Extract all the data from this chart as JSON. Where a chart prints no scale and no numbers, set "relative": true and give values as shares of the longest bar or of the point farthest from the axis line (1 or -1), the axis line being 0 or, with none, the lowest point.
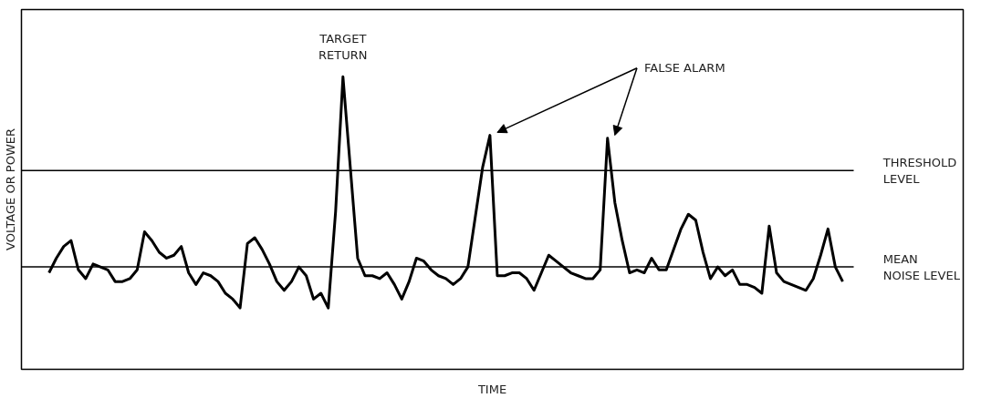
{
  "chart_data": {
    "type": "line",
    "relative": true,
    "xlabel": "TIME",
    "ylabel": "VOLTAGE OR POWER",
    "categories": [
      null,
      null,
      null,
      null,
      null,
      null,
      null,
      null,
      null,
      null,
      null,
      null,
      null,
      null,
      null,
      null,
      null,
      null,
      null,
      null,
      null,
      null,
      null,
      null,
      null,
      null,
      null,
      null,
      null,
      null,
      null,
      null,
      null,
      null,
      null,
      null,
      null,
      null,
      null,
      null,
      null,
      null,
      null,
      null,
      null,
      null,
      null,
      null,
      null,
      null,
      null,
      null,
      null,
      null,
      null,
      null,
      null,
      null,
      null,
      null,
      null,
      null,
      null,
      null,
      null,
      null,
      null,
      null,
      null,
      null,
      null,
      null,
      null,
      null,
      null,
      null,
      null,
      null,
      null,
      null,
      null,
      null,
      null,
      null,
      null,
      null,
      null,
      null,
      null,
      null,
      null,
      null,
      null,
      null,
      null,
      null,
      null,
      null,
      null,
      null,
      null,
      null,
      null,
      null,
      null,
      null,
      null,
      null,
      null
    ],
    "series": [
      {
        "color": "#000000",
        "values": [
          0.33,
          0.38,
          0.42,
          0.44,
          0.34,
          0.31,
          0.36,
          0.35,
          0.34,
          0.3,
          0.3,
          0.31,
          0.34,
          0.47,
          0.44,
          0.4,
          0.38,
          0.39,
          0.42,
          0.33,
          0.29,
          0.33,
          0.32,
          0.3,
          0.26,
          0.24,
          0.21,
          0.43,
          0.45,
          0.41,
          0.36,
          0.3,
          0.27,
          0.3,
          0.35,
          0.32,
          0.24,
          0.26,
          0.21,
          0.54,
          1,
          0.69,
          0.38,
          0.32,
          0.32,
          0.31,
          0.33,
          0.29,
          0.24,
          0.3,
          0.38,
          0.37,
          0.34,
          0.32,
          0.31,
          0.29,
          0.31,
          0.35,
          0.52,
          0.69,
          0.8,
          0.32,
          0.32,
          0.33,
          0.33,
          0.31,
          0.27,
          0.33,
          0.39,
          0.37,
          0.35,
          0.33,
          0.32,
          0.31,
          0.31,
          0.34,
          0.79,
          0.57,
          0.44,
          0.33,
          0.34,
          0.33,
          0.38,
          0.34,
          0.34,
          0.41,
          0.48,
          0.53,
          0.51,
          0.4,
          0.31,
          0.35,
          0.32,
          0.34,
          0.29,
          0.29,
          0.28,
          0.26,
          0.49,
          0.33,
          0.3,
          0.29,
          0.28,
          0.27,
          0.31,
          0.39,
          0.48,
          0.35,
          0.3
        ]
      }
    ],
    "ref_lines": [
      {
        "axis": "y",
        "value": 0.68,
        "label": "THRESHOLD\nLEVEL",
        "color": "#000000"
      },
      {
        "axis": "y",
        "value": 0.35,
        "label": "MEAN\nNOISE LEVEL",
        "color": "#000000"
      }
    ],
    "annotations": [
      "TARGET\nRETURN",
      "FALSE ALARM"
    ]
  }
}
